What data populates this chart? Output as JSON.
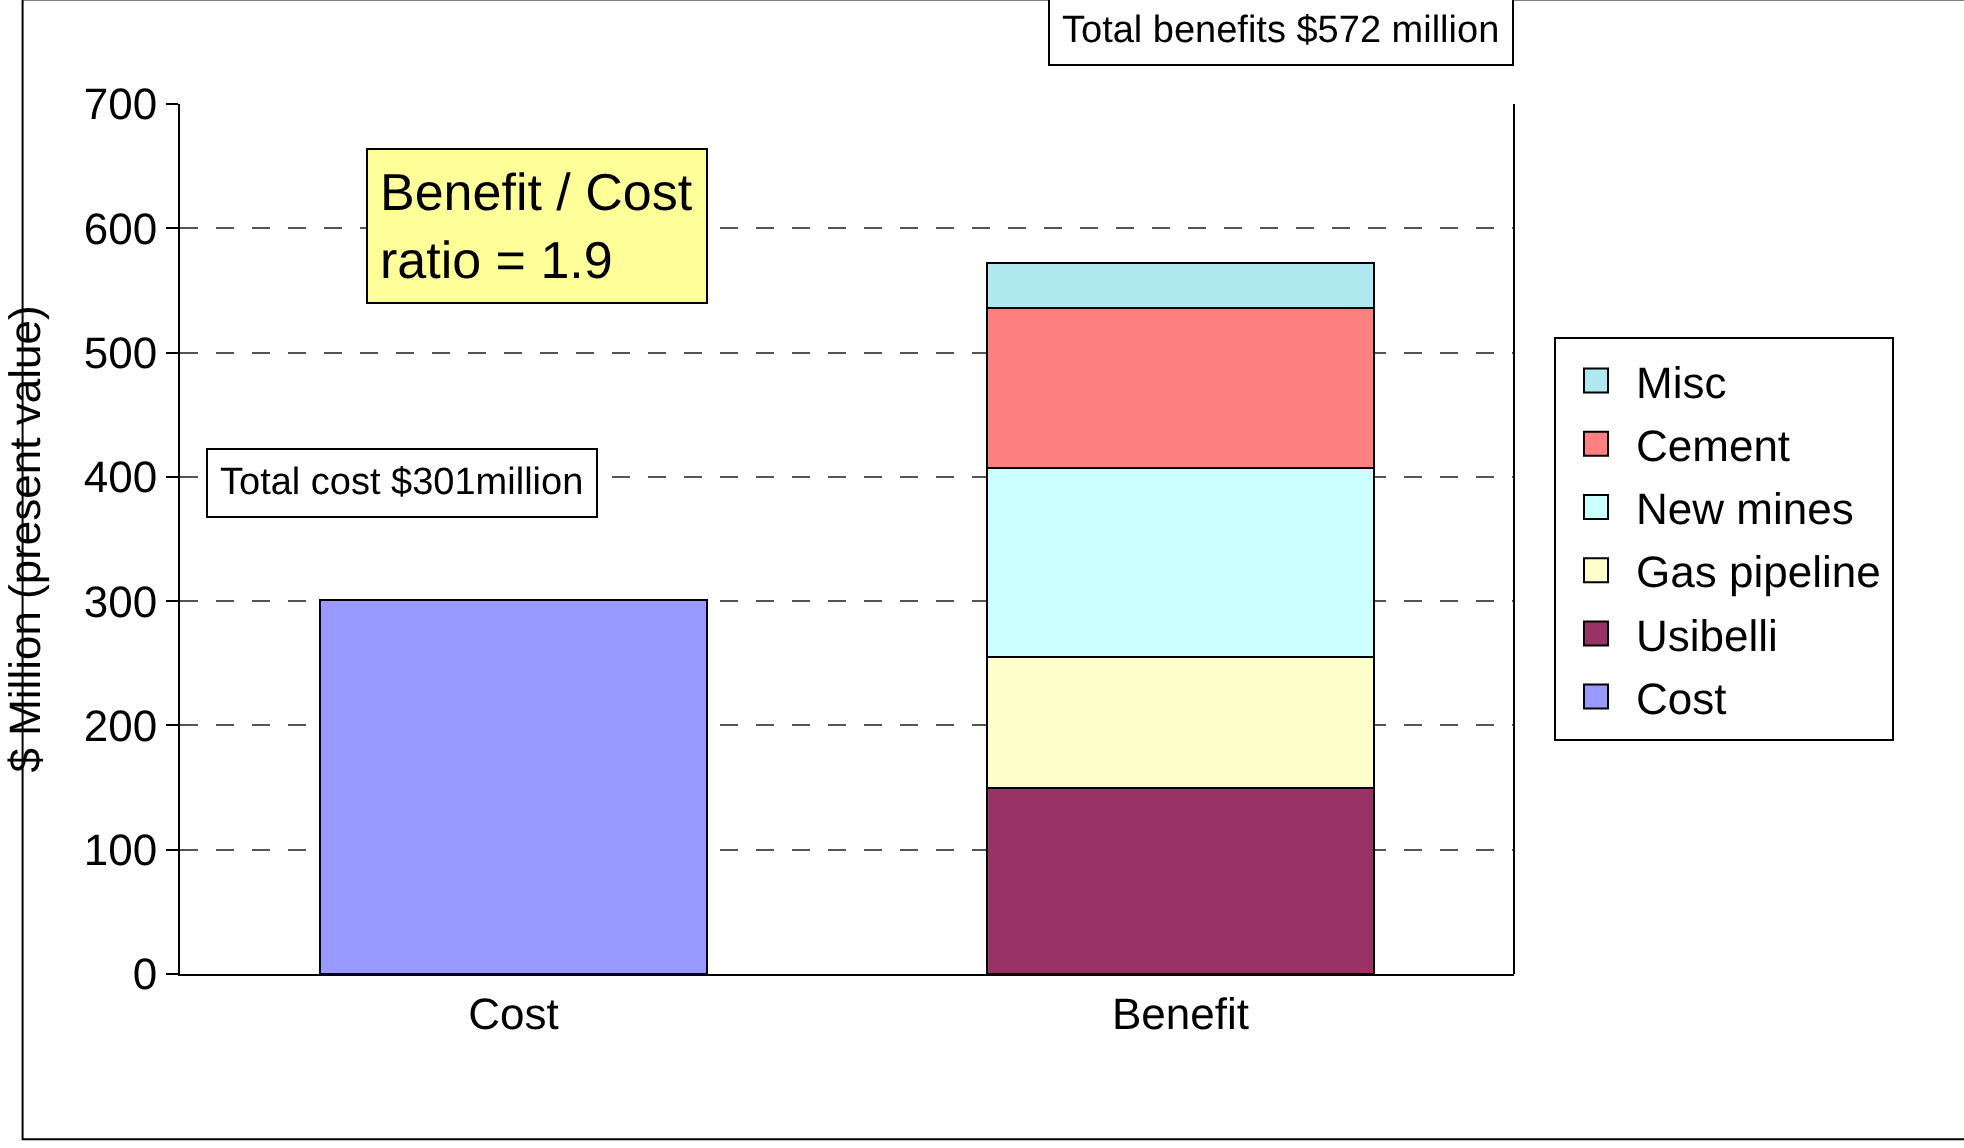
{
  "chart_data": {
    "type": "bar",
    "stacked": true,
    "ylabel": "$ Million (present value)",
    "categories": [
      "Cost",
      "Benefit"
    ],
    "series": [
      {
        "name": "Cost",
        "color": "#9999ff",
        "values": [
          301,
          null
        ]
      },
      {
        "name": "Usibelli",
        "color": "#993366",
        "values": [
          null,
          150
        ]
      },
      {
        "name": "Gas pipeline",
        "color": "#ffffcc",
        "values": [
          null,
          105
        ]
      },
      {
        "name": "New mines",
        "color": "#ccffff",
        "values": [
          null,
          152
        ]
      },
      {
        "name": "Cement",
        "color": "#ff8080",
        "values": [
          null,
          129
        ]
      },
      {
        "name": "Misc",
        "color": "#b0e8f0",
        "values": [
          null,
          36
        ]
      }
    ],
    "ylim": [
      0,
      700
    ],
    "yticks": [
      0,
      100,
      200,
      300,
      400,
      500,
      600,
      700
    ],
    "grid": "y",
    "legend": "right",
    "annotations": [
      "Total benefits $572 million",
      "Benefit / Cost ratio = 1.9",
      "Total cost $301million"
    ]
  }
}
